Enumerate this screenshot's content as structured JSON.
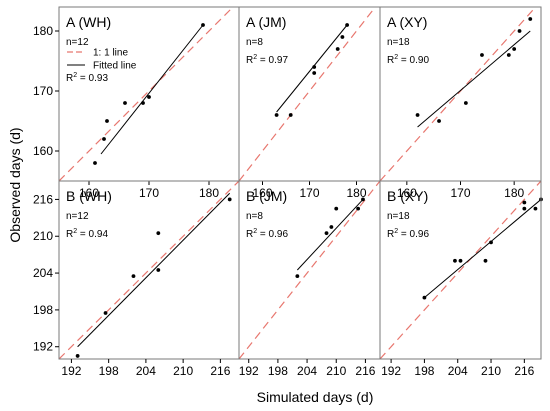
{
  "figure": {
    "xlabel": "Simulated days (d)",
    "ylabel": "Observed days (d)",
    "legend": {
      "one_to_one": "1:  1 line",
      "fitted": "Fitted line"
    }
  },
  "style": {
    "one_to_one_color": "#e8776f",
    "fitted_color": "#000000",
    "point_color": "#000000",
    "frame_color": "#7a7a7a"
  },
  "chart_data": [
    {
      "type": "scatter",
      "title": "A (WH)",
      "n_label": "n=12",
      "r2_value": "0.93",
      "xlim": [
        155,
        185
      ],
      "ylim": [
        155,
        184
      ],
      "xticks": [
        160,
        170,
        180
      ],
      "yticks": [
        160,
        170,
        180
      ],
      "show_xticklabels": true,
      "show_yticklabels": true,
      "legend": true,
      "points": [
        [
          161,
          158
        ],
        [
          162.5,
          162
        ],
        [
          163,
          165
        ],
        [
          166,
          168
        ],
        [
          169,
          168
        ],
        [
          170,
          169
        ],
        [
          179,
          181
        ]
      ],
      "fit": [
        [
          162,
          159.5
        ],
        [
          179,
          181
        ]
      ]
    },
    {
      "type": "scatter",
      "title": "A (JM)",
      "n_label": "n=8",
      "r2_value": "0.97",
      "xlim": [
        155,
        185
      ],
      "ylim": [
        155,
        184
      ],
      "xticks": [
        160,
        170,
        180
      ],
      "yticks": [
        160,
        170,
        180
      ],
      "show_xticklabels": true,
      "show_yticklabels": false,
      "legend": false,
      "points": [
        [
          163,
          166
        ],
        [
          166,
          166
        ],
        [
          171,
          173
        ],
        [
          171,
          174
        ],
        [
          176,
          177
        ],
        [
          177,
          179
        ],
        [
          178,
          181
        ]
      ],
      "fit": [
        [
          163,
          166.5
        ],
        [
          178,
          181
        ]
      ]
    },
    {
      "type": "scatter",
      "title": "A (XY)",
      "n_label": "n=18",
      "r2_value": "0.90",
      "xlim": [
        155,
        185
      ],
      "ylim": [
        155,
        184
      ],
      "xticks": [
        160,
        170,
        180
      ],
      "yticks": [
        160,
        170,
        180
      ],
      "show_xticklabels": true,
      "show_yticklabels": false,
      "legend": false,
      "points": [
        [
          162,
          166
        ],
        [
          166,
          165
        ],
        [
          171,
          168
        ],
        [
          174,
          176
        ],
        [
          179,
          176
        ],
        [
          180,
          177
        ],
        [
          181,
          180
        ],
        [
          183,
          182
        ]
      ],
      "fit": [
        [
          162,
          164
        ],
        [
          183,
          180
        ]
      ]
    },
    {
      "type": "scatter",
      "title": "B (WH)",
      "n_label": "n=12",
      "r2_value": "0.94",
      "xlim": [
        190,
        219
      ],
      "ylim": [
        190,
        219
      ],
      "xticks": [
        192,
        198,
        204,
        210,
        216
      ],
      "yticks": [
        192,
        198,
        204,
        210,
        216
      ],
      "show_xticklabels": true,
      "show_yticklabels": true,
      "legend": false,
      "points": [
        [
          193,
          190.5
        ],
        [
          197.5,
          197.5
        ],
        [
          202,
          203.5
        ],
        [
          206,
          204.5
        ],
        [
          206,
          210.5
        ],
        [
          217.5,
          216
        ]
      ],
      "fit": [
        [
          193,
          192
        ],
        [
          217.5,
          217
        ]
      ]
    },
    {
      "type": "scatter",
      "title": "B (JM)",
      "n_label": "n=8",
      "r2_value": "0.96",
      "xlim": [
        190,
        219
      ],
      "ylim": [
        190,
        219
      ],
      "xticks": [
        192,
        198,
        204,
        210,
        216
      ],
      "yticks": [
        192,
        198,
        204,
        210,
        216
      ],
      "show_xticklabels": true,
      "show_yticklabels": false,
      "legend": false,
      "points": [
        [
          202,
          203.5
        ],
        [
          208,
          210.5
        ],
        [
          209,
          211.5
        ],
        [
          210,
          214.5
        ],
        [
          214.5,
          214.5
        ],
        [
          215.5,
          216
        ]
      ],
      "fit": [
        [
          202,
          204.5
        ],
        [
          215.5,
          216
        ]
      ]
    },
    {
      "type": "scatter",
      "title": "B (XY)",
      "n_label": "n=18",
      "r2_value": "0.96",
      "xlim": [
        190,
        219
      ],
      "ylim": [
        190,
        219
      ],
      "xticks": [
        192,
        198,
        204,
        210,
        216
      ],
      "yticks": [
        192,
        198,
        204,
        210,
        216
      ],
      "show_xticklabels": true,
      "show_yticklabels": false,
      "legend": false,
      "points": [
        [
          198,
          200
        ],
        [
          203.5,
          206
        ],
        [
          204.5,
          206
        ],
        [
          209,
          206
        ],
        [
          210,
          209
        ],
        [
          216,
          214.5
        ],
        [
          216,
          215.5
        ],
        [
          218,
          214.5
        ],
        [
          219,
          216
        ]
      ],
      "fit": [
        [
          198,
          200
        ],
        [
          219,
          216
        ]
      ]
    }
  ]
}
